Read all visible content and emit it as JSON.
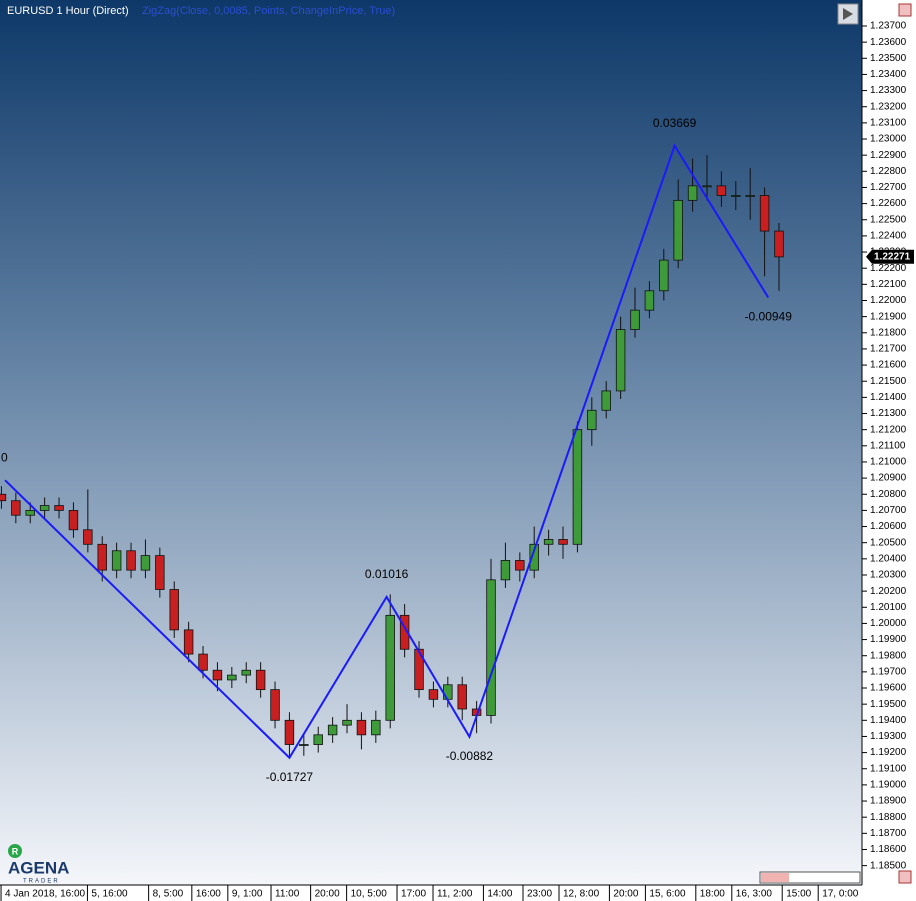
{
  "chart_data": {
    "type": "candlestick",
    "title": "EURUSD 1 Hour (Direct)",
    "indicator": "ZigZag(Close, 0,0085, Points, ChangeInPrice, True)",
    "x": [
      0,
      4,
      8,
      12,
      16,
      20,
      24,
      28,
      32,
      36,
      40,
      44,
      48,
      52,
      56,
      60,
      64,
      68,
      72,
      76,
      80,
      84,
      88,
      92,
      96,
      100,
      104,
      108,
      112,
      116,
      120,
      124,
      128,
      132,
      136,
      140,
      144,
      148,
      152,
      156,
      160,
      164,
      168,
      172,
      176,
      180,
      184,
      188,
      192,
      196,
      200,
      204,
      208,
      212,
      216
    ],
    "open": [
      1.208,
      1.2076,
      1.2067,
      1.207,
      1.2073,
      1.207,
      1.2058,
      1.2049,
      1.2033,
      1.2045,
      1.2033,
      1.2042,
      1.2021,
      1.1996,
      1.1981,
      1.1971,
      1.1965,
      1.1968,
      1.1971,
      1.1959,
      1.194,
      1.1925,
      1.1925,
      1.1931,
      1.1937,
      1.194,
      1.1931,
      1.194,
      1.2005,
      1.1984,
      1.1959,
      1.1953,
      1.1962,
      1.1947,
      1.1943,
      1.2027,
      1.2039,
      1.2033,
      1.2049,
      1.2052,
      1.2049,
      1.212,
      1.2132,
      1.2144,
      1.2182,
      1.2194,
      1.2206,
      1.2225,
      1.2262,
      1.2271,
      1.2271,
      1.2265,
      1.2265,
      1.2265,
      1.2243
    ],
    "high": [
      1.2085,
      1.2081,
      1.2075,
      1.2078,
      1.2078,
      1.2075,
      1.2083,
      1.2054,
      1.205,
      1.205,
      1.2052,
      1.2047,
      1.2026,
      1.2001,
      1.1986,
      1.1976,
      1.1973,
      1.1976,
      1.1976,
      1.1964,
      1.1945,
      1.1932,
      1.1936,
      1.1942,
      1.195,
      1.1945,
      1.1946,
      1.2018,
      1.2012,
      1.1989,
      1.1964,
      1.1967,
      1.1967,
      1.1952,
      1.204,
      1.205,
      1.2044,
      1.206,
      1.2058,
      1.206,
      1.2125,
      1.214,
      1.215,
      1.219,
      1.2208,
      1.2212,
      1.2232,
      1.2275,
      1.2288,
      1.229,
      1.228,
      1.2274,
      1.2282,
      1.227,
      1.2248
    ],
    "low": [
      1.2071,
      1.2062,
      1.2062,
      1.2065,
      1.2065,
      1.2053,
      1.2044,
      1.2026,
      1.2028,
      1.2028,
      1.2028,
      1.2016,
      1.1991,
      1.1976,
      1.1966,
      1.1958,
      1.196,
      1.1963,
      1.1954,
      1.1935,
      1.1918,
      1.1918,
      1.192,
      1.1926,
      1.1932,
      1.1922,
      1.1926,
      1.1935,
      1.1979,
      1.1954,
      1.1948,
      1.1948,
      1.194,
      1.1932,
      1.1938,
      1.2022,
      1.2026,
      1.2028,
      1.2042,
      1.204,
      1.2044,
      1.211,
      1.2127,
      1.2139,
      1.2177,
      1.2189,
      1.22,
      1.222,
      1.2255,
      1.2262,
      1.2258,
      1.2256,
      1.225,
      1.2215,
      1.2206
    ],
    "close": [
      1.2076,
      1.2067,
      1.207,
      1.2073,
      1.207,
      1.2058,
      1.2049,
      1.2033,
      1.2045,
      1.2033,
      1.2042,
      1.2021,
      1.1996,
      1.1981,
      1.1971,
      1.1965,
      1.1968,
      1.1971,
      1.1959,
      1.194,
      1.1925,
      1.1925,
      1.1931,
      1.1937,
      1.194,
      1.1931,
      1.194,
      1.2005,
      1.1984,
      1.1959,
      1.1953,
      1.1962,
      1.1947,
      1.1943,
      1.2027,
      1.2039,
      1.2033,
      1.2049,
      1.2052,
      1.2049,
      1.212,
      1.2132,
      1.2144,
      1.2182,
      1.2194,
      1.2206,
      1.2225,
      1.2262,
      1.2271,
      1.2271,
      1.2265,
      1.2265,
      1.2265,
      1.2243,
      1.2227
    ],
    "up_color": "#3f9a3a",
    "down_color": "#c82020",
    "xlim": [
      -0.4,
      238.5
    ],
    "ylim": [
      1.1838,
      1.2383
    ],
    "xticks": [
      {
        "value": 1,
        "label": "4 Jan 2018, 16:00"
      },
      {
        "value": 25,
        "label": "5, 16:00"
      },
      {
        "value": 42,
        "label": "8, 5:00"
      },
      {
        "value": 54,
        "label": "16:00"
      },
      {
        "value": 64,
        "label": "9, 1:00"
      },
      {
        "value": 76,
        "label": "11:00"
      },
      {
        "value": 87,
        "label": "20:00"
      },
      {
        "value": 97,
        "label": "10, 5:00"
      },
      {
        "value": 111,
        "label": "17:00"
      },
      {
        "value": 121,
        "label": "11, 2:00"
      },
      {
        "value": 135,
        "label": "14:00"
      },
      {
        "value": 146,
        "label": "23:00"
      },
      {
        "value": 156,
        "label": "12, 8:00"
      },
      {
        "value": 170,
        "label": "20:00"
      },
      {
        "value": 180,
        "label": "15, 6:00"
      },
      {
        "value": 194,
        "label": "18:00"
      },
      {
        "value": 204,
        "label": "16, 3:00"
      },
      {
        "value": 218,
        "label": "15:00"
      },
      {
        "value": 228,
        "label": "17, 0:00"
      }
    ],
    "yticks": [
      {
        "value": 1.185,
        "label": "1.18500"
      },
      {
        "value": 1.186,
        "label": "1.18600"
      },
      {
        "value": 1.187,
        "label": "1.18700"
      },
      {
        "value": 1.188,
        "label": "1.18800"
      },
      {
        "value": 1.189,
        "label": "1.18900"
      },
      {
        "value": 1.19,
        "label": "1.19000"
      },
      {
        "value": 1.191,
        "label": "1.19100"
      },
      {
        "value": 1.192,
        "label": "1.19200"
      },
      {
        "value": 1.193,
        "label": "1.19300"
      },
      {
        "value": 1.194,
        "label": "1.19400"
      },
      {
        "value": 1.195,
        "label": "1.19500"
      },
      {
        "value": 1.196,
        "label": "1.19600"
      },
      {
        "value": 1.197,
        "label": "1.19700"
      },
      {
        "value": 1.198,
        "label": "1.19800"
      },
      {
        "value": 1.199,
        "label": "1.19900"
      },
      {
        "value": 1.2,
        "label": "1.20000"
      },
      {
        "value": 1.201,
        "label": "1.20100"
      },
      {
        "value": 1.202,
        "label": "1.20200"
      },
      {
        "value": 1.203,
        "label": "1.20300"
      },
      {
        "value": 1.204,
        "label": "1.20400"
      },
      {
        "value": 1.205,
        "label": "1.20500"
      },
      {
        "value": 1.206,
        "label": "1.20600"
      },
      {
        "value": 1.207,
        "label": "1.20700"
      },
      {
        "value": 1.208,
        "label": "1.20800"
      },
      {
        "value": 1.209,
        "label": "1.20900"
      },
      {
        "value": 1.21,
        "label": "1.21000"
      },
      {
        "value": 1.211,
        "label": "1.21100"
      },
      {
        "value": 1.212,
        "label": "1.21200"
      },
      {
        "value": 1.213,
        "label": "1.21300"
      },
      {
        "value": 1.214,
        "label": "1.21400"
      },
      {
        "value": 1.215,
        "label": "1.21500"
      },
      {
        "value": 1.216,
        "label": "1.21600"
      },
      {
        "value": 1.217,
        "label": "1.21700"
      },
      {
        "value": 1.218,
        "label": "1.21800"
      },
      {
        "value": 1.219,
        "label": "1.21900"
      },
      {
        "value": 1.22,
        "label": "1.22000"
      },
      {
        "value": 1.221,
        "label": "1.22100"
      },
      {
        "value": 1.222,
        "label": "1.22200"
      },
      {
        "value": 1.223,
        "label": "1.22300"
      },
      {
        "value": 1.224,
        "label": "1.22400"
      },
      {
        "value": 1.225,
        "label": "1.22500"
      },
      {
        "value": 1.226,
        "label": "1.22600"
      },
      {
        "value": 1.227,
        "label": "1.22700"
      },
      {
        "value": 1.228,
        "label": "1.22800"
      },
      {
        "value": 1.229,
        "label": "1.22900"
      },
      {
        "value": 1.23,
        "label": "1.23000"
      },
      {
        "value": 1.231,
        "label": "1.23100"
      },
      {
        "value": 1.232,
        "label": "1.23200"
      },
      {
        "value": 1.233,
        "label": "1.23300"
      },
      {
        "value": 1.234,
        "label": "1.23400"
      },
      {
        "value": 1.235,
        "label": "1.23500"
      },
      {
        "value": 1.236,
        "label": "1.23600"
      },
      {
        "value": 1.237,
        "label": "1.23700"
      }
    ],
    "last_price": 1.22271,
    "zigzag": {
      "color": "#1a1aff",
      "x": [
        1,
        80,
        107,
        130,
        187,
        213
      ],
      "y": [
        1.20887,
        1.19168,
        1.20164,
        1.19298,
        1.22959,
        1.22019
      ],
      "changes": [
        0,
        -0.01727,
        0.01016,
        -0.00882,
        0.03669,
        -0.00949
      ]
    }
  },
  "logo": {
    "name": "AGENA",
    "tagline": "TRADER"
  }
}
